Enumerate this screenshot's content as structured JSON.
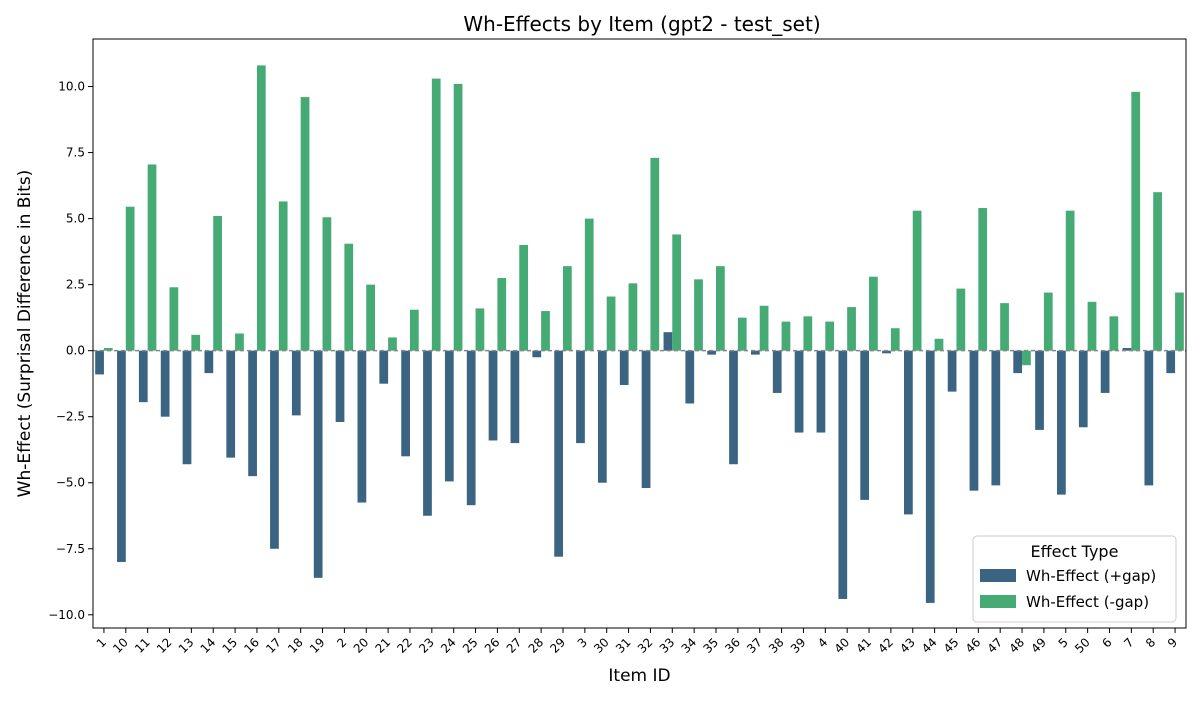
{
  "chart_data": {
    "type": "bar",
    "title": "Wh-Effects by Item (gpt2 - test_set)",
    "xlabel": "Item ID",
    "ylabel": "Wh-Effect (Surprisal Difference in Bits)",
    "ylim": [
      -10.5,
      11.8
    ],
    "yticks": [
      "−10.0",
      "−7.5",
      "−5.0",
      "−2.5",
      "0.0",
      "2.5",
      "5.0",
      "7.5",
      "10.0"
    ],
    "ytick_values": [
      -10.0,
      -7.5,
      -5.0,
      -2.5,
      0.0,
      2.5,
      5.0,
      7.5,
      10.0
    ],
    "grid": false,
    "zero_line": true,
    "legend": {
      "title": "Effect Type",
      "placement": "lower-right"
    },
    "categories": [
      "1",
      "10",
      "11",
      "12",
      "13",
      "14",
      "15",
      "16",
      "17",
      "18",
      "19",
      "2",
      "20",
      "21",
      "22",
      "23",
      "24",
      "25",
      "26",
      "27",
      "28",
      "29",
      "3",
      "30",
      "31",
      "32",
      "33",
      "34",
      "35",
      "36",
      "37",
      "38",
      "39",
      "4",
      "40",
      "41",
      "42",
      "43",
      "44",
      "45",
      "46",
      "47",
      "48",
      "49",
      "5",
      "50",
      "6",
      "7",
      "8",
      "9"
    ],
    "series": [
      {
        "name": "Wh-Effect (+gap)",
        "color": "#3a6482",
        "values": [
          -0.9,
          -8.0,
          -1.95,
          -2.5,
          -4.3,
          -0.85,
          -4.05,
          -4.75,
          -7.5,
          -2.45,
          -8.6,
          -2.7,
          -5.75,
          -1.25,
          -4.0,
          -6.25,
          -4.95,
          -5.85,
          -3.4,
          -3.5,
          -0.25,
          -7.8,
          -3.5,
          -5.0,
          -1.3,
          -5.2,
          0.7,
          -2.0,
          -0.15,
          -4.3,
          -0.15,
          -1.6,
          -3.1,
          -3.1,
          -9.4,
          -5.65,
          -0.1,
          -6.2,
          -9.55,
          -1.55,
          -5.3,
          -5.1,
          -0.85,
          -3.0,
          -5.45,
          -2.9,
          -1.6,
          0.1,
          -5.1,
          -0.85
        ]
      },
      {
        "name": "Wh-Effect (-gap)",
        "color": "#45aa73",
        "values": [
          0.1,
          5.45,
          7.05,
          2.4,
          0.6,
          5.1,
          0.65,
          10.8,
          5.65,
          9.6,
          5.05,
          4.05,
          2.5,
          0.5,
          1.55,
          10.3,
          10.1,
          1.6,
          2.75,
          4.0,
          1.5,
          3.2,
          5.0,
          2.05,
          2.55,
          7.3,
          4.4,
          2.7,
          3.2,
          1.25,
          1.7,
          1.1,
          1.3,
          1.1,
          1.65,
          2.8,
          0.85,
          5.3,
          0.45,
          2.35,
          5.4,
          1.8,
          -0.55,
          2.2,
          5.3,
          1.85,
          1.3,
          9.8,
          6.0,
          2.2
        ]
      }
    ]
  }
}
